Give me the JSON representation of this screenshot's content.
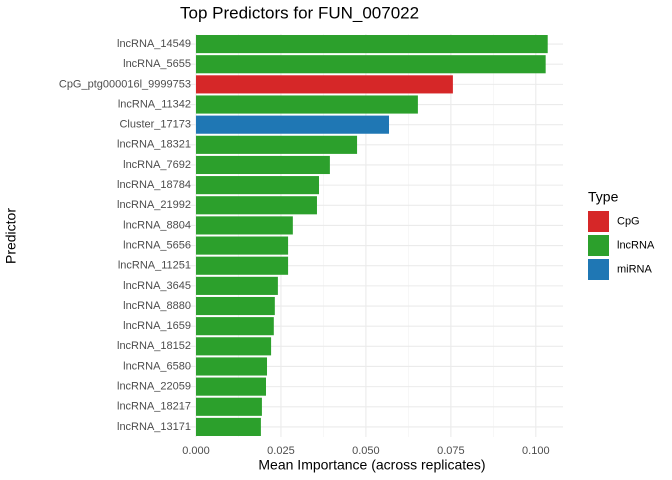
{
  "chart_data": {
    "type": "bar",
    "orientation": "horizontal",
    "title": "Top Predictors for FUN_007022",
    "x_label": "Mean Importance (across replicates)",
    "y_label": "Predictor",
    "legend_title": "Type",
    "categories": [
      "lncRNA_14549",
      "lncRNA_5655",
      "CpG_ptg000016l_9999753",
      "lncRNA_11342",
      "Cluster_17173",
      "lncRNA_18321",
      "lncRNA_7692",
      "lncRNA_18784",
      "lncRNA_21992",
      "lncRNA_8804",
      "lncRNA_5656",
      "lncRNA_11251",
      "lncRNA_3645",
      "lncRNA_8880",
      "lncRNA_1659",
      "lncRNA_18152",
      "lncRNA_6580",
      "lncRNA_22059",
      "lncRNA_18217",
      "lncRNA_13171"
    ],
    "series": [
      {
        "name": "CpG",
        "color": "#d62728",
        "values": [
          null,
          null,
          0.0756,
          null,
          null,
          null,
          null,
          null,
          null,
          null,
          null,
          null,
          null,
          null,
          null,
          null,
          null,
          null,
          null,
          null
        ]
      },
      {
        "name": "lncRNA",
        "color": "#2ca02c",
        "values": [
          0.1035,
          0.1029,
          null,
          0.0653,
          null,
          0.0474,
          0.0394,
          0.0362,
          0.0356,
          0.0285,
          0.0271,
          0.0271,
          0.0241,
          0.0232,
          0.0229,
          0.0221,
          0.0209,
          0.0206,
          0.0194,
          0.0191
        ]
      },
      {
        "name": "miRNA",
        "color": "#1f77b4",
        "values": [
          null,
          null,
          null,
          null,
          0.0568,
          null,
          null,
          null,
          null,
          null,
          null,
          null,
          null,
          null,
          null,
          null,
          null,
          null,
          null,
          null
        ]
      }
    ],
    "xlim": [
      -0.005,
      0.108
    ],
    "xticks": [
      {
        "value": 0,
        "label": "0.000"
      },
      {
        "value": 0.025,
        "label": "0.025"
      },
      {
        "value": 0.05,
        "label": "0.050"
      },
      {
        "value": 0.075,
        "label": "0.075"
      },
      {
        "value": 0.1,
        "label": "0.100"
      }
    ],
    "grid": true
  }
}
